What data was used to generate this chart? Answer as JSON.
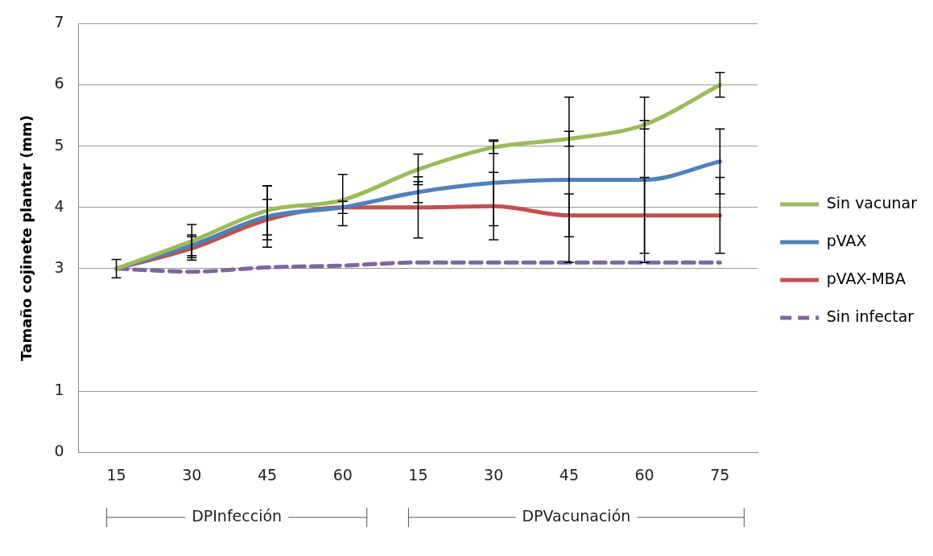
{
  "chart_data": {
    "type": "line",
    "ylabel": "Tamaño cojinete plantar (mm)",
    "categories": [
      "15",
      "30",
      "45",
      "60",
      "15",
      "30",
      "45",
      "60",
      "75"
    ],
    "series": [
      {
        "name": "Sin vacunar",
        "color": "#9bbb59",
        "values": [
          3.0,
          3.45,
          3.95,
          4.12,
          4.62,
          4.98,
          5.12,
          5.35,
          6.0
        ],
        "errors": [
          0.15,
          0.27,
          0.4,
          0.42,
          0.25,
          0.1,
          0.12,
          0.07,
          0.2
        ]
      },
      {
        "name": "pVAX",
        "color": "#4f81bd",
        "values": [
          3.0,
          3.38,
          3.85,
          4.0,
          4.25,
          4.4,
          4.45,
          4.45,
          4.75
        ],
        "errors": [
          null,
          0.17,
          0.5,
          0.1,
          0.17,
          0.7,
          1.35,
          1.35,
          0.53
        ]
      },
      {
        "name": "pVAX-MBA",
        "color": "#c0504d",
        "values": [
          3.0,
          3.33,
          3.8,
          4.0,
          4.0,
          4.02,
          3.87,
          3.87,
          3.87
        ],
        "errors": [
          null,
          0.19,
          0.33,
          null,
          0.5,
          0.55,
          0.35,
          0.62,
          0.62
        ]
      },
      {
        "name": "Sin infectar",
        "color": "#8064a2",
        "values": [
          3.0,
          2.95,
          3.02,
          3.05,
          3.1,
          3.1,
          3.1,
          3.1,
          3.1
        ],
        "line_style": "dashed"
      }
    ],
    "annotations": [
      "DPInfección",
      "DPVacunación"
    ],
    "ylim": [
      0,
      7
    ],
    "yticks": [
      0,
      1,
      3,
      4,
      5,
      6,
      7
    ],
    "grid": "y",
    "legend": "right",
    "marker": "none"
  }
}
